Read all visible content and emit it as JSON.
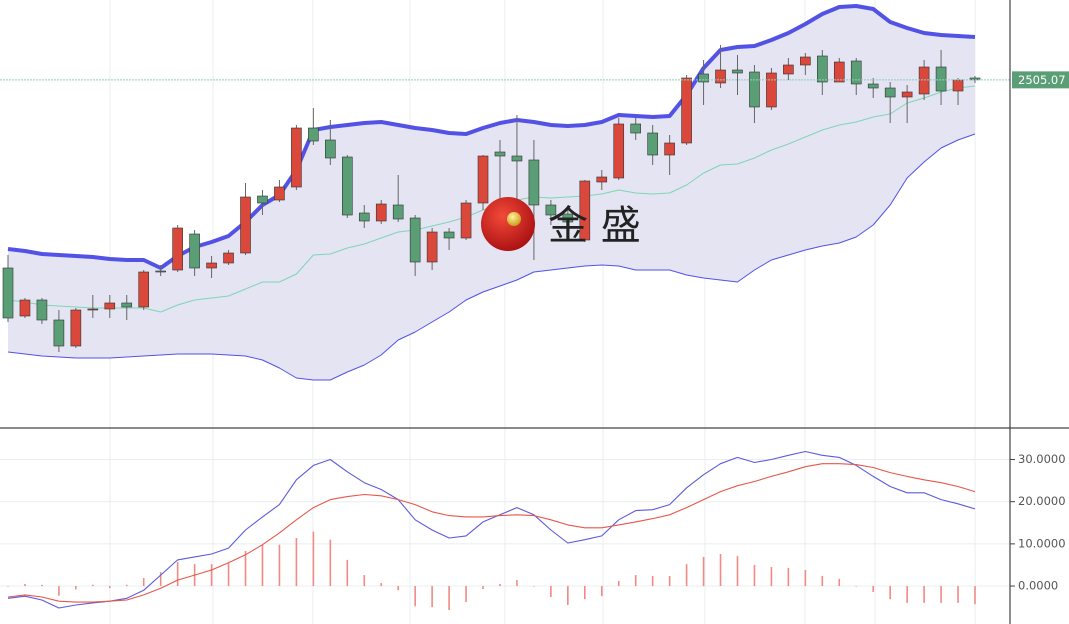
{
  "chart_data": [
    {
      "type": "candlestick",
      "ylim": [
        2331,
        2545
      ],
      "up_color": "#d9483b",
      "down_color": "#5a9e76",
      "band_fill": "#e4e4f2",
      "watermark": "金 盛",
      "open": [
        2411,
        2387,
        2395,
        2385,
        2372,
        2390,
        2390.5,
        2393.5,
        2391.5,
        2409.5,
        2410,
        2428,
        2411,
        2413.5,
        2418.5,
        2447,
        2445,
        2451.5,
        2481,
        2475,
        2466.5,
        2438.5,
        2434.5,
        2442.5,
        2436,
        2414,
        2429,
        2426,
        2443.5,
        2469,
        2467,
        2465,
        2442.5,
        2438,
        2425,
        2454,
        2456,
        2483,
        2478.5,
        2467.5,
        2473.5,
        2508,
        2503.5,
        2510,
        2509,
        2491.5,
        2508,
        2512.5,
        2517,
        2504,
        2514.5,
        2503,
        2501,
        2496.5,
        2498,
        2511.5,
        2499.5,
        2506
      ],
      "high": [
        2417.5,
        2396,
        2396,
        2390,
        2391,
        2397.5,
        2397.5,
        2397.5,
        2410,
        2412.5,
        2432.5,
        2430,
        2417,
        2420,
        2453.5,
        2450,
        2455,
        2482.5,
        2491,
        2485,
        2467.5,
        2442.5,
        2445,
        2457.5,
        2437.5,
        2431,
        2431,
        2445,
        2467.5,
        2475,
        2487.5,
        2475,
        2445,
        2440,
        2455,
        2460,
        2486,
        2486,
        2482.5,
        2477.5,
        2507.5,
        2515,
        2522.5,
        2517.5,
        2512.5,
        2511,
        2516,
        2518.5,
        2520,
        2516,
        2516,
        2506,
        2504,
        2502.5,
        2515,
        2520,
        2506,
        2507
      ],
      "low": [
        2384,
        2386,
        2383,
        2369,
        2371,
        2386,
        2386,
        2385,
        2390,
        2407,
        2409,
        2407,
        2406,
        2412.5,
        2417.5,
        2437.5,
        2444,
        2450,
        2472.5,
        2462.5,
        2436,
        2431,
        2433,
        2434,
        2407,
        2410,
        2420,
        2425,
        2440,
        2440,
        2430,
        2415,
        2432.5,
        2427.5,
        2424,
        2450,
        2455,
        2475,
        2462.5,
        2457.5,
        2472.5,
        2492.5,
        2501,
        2497.5,
        2483.5,
        2490,
        2505,
        2507.5,
        2497.5,
        2504,
        2497.5,
        2496,
        2483.5,
        2483.5,
        2495,
        2492.5,
        2492.5,
        2503.5
      ],
      "close": [
        2386,
        2395,
        2385,
        2372,
        2390,
        2390.5,
        2393.5,
        2391.5,
        2409,
        2409,
        2431,
        2411,
        2413.5,
        2418.5,
        2446.5,
        2443.5,
        2451.5,
        2481,
        2474.5,
        2466,
        2437.5,
        2434.5,
        2443,
        2435.5,
        2414,
        2429,
        2426,
        2443.5,
        2467,
        2467,
        2464.5,
        2442.5,
        2437.5,
        2434,
        2454.5,
        2456.5,
        2483,
        2478.5,
        2467.5,
        2473.5,
        2506,
        2504,
        2510,
        2508.5,
        2491.5,
        2508.5,
        2512.5,
        2516.5,
        2504,
        2514,
        2503,
        2501,
        2496.5,
        2499,
        2511.5,
        2499.5,
        2505,
        2505.07
      ],
      "bands": {
        "upper": {
          "color": "#5252e6",
          "values": [
            2420.5,
            2419.5,
            2418,
            2417.5,
            2417,
            2416.5,
            2415.5,
            2415,
            2415,
            2411,
            2417,
            2421.5,
            2424,
            2427,
            2434,
            2442.5,
            2447.5,
            2460,
            2480,
            2481.5,
            2482.5,
            2483.5,
            2484,
            2482.5,
            2481,
            2480,
            2478.5,
            2478,
            2481,
            2483.5,
            2485,
            2484,
            2482.5,
            2482,
            2482.5,
            2484,
            2487.5,
            2487,
            2486.5,
            2487,
            2497.5,
            2511,
            2520,
            2521.5,
            2522,
            2525,
            2528.5,
            2533,
            2538,
            2541.5,
            2542,
            2540.5,
            2534,
            2531,
            2528.5,
            2527.5,
            2527,
            2526.5
          ]
        },
        "middle": {
          "color": "#7fd6b6",
          "values": [
            2395,
            2394,
            2392.5,
            2392,
            2391.5,
            2391,
            2391,
            2391,
            2391,
            2389,
            2392.5,
            2395,
            2396,
            2397,
            2400.5,
            2404,
            2404,
            2408,
            2417.5,
            2418,
            2421,
            2423,
            2426,
            2429,
            2430,
            2432,
            2434,
            2436.5,
            2440,
            2443,
            2445,
            2446.5,
            2446,
            2446.5,
            2447,
            2448,
            2450,
            2448.5,
            2448,
            2448.5,
            2452.5,
            2458.5,
            2462.5,
            2463,
            2466,
            2470,
            2473,
            2476.5,
            2480,
            2482.5,
            2484,
            2486.5,
            2488,
            2493.5,
            2496,
            2499,
            2501,
            2502
          ]
        },
        "lower": {
          "color": "#5252e6",
          "values": [
            2369,
            2368,
            2367,
            2366.5,
            2366,
            2366,
            2366,
            2366.5,
            2367,
            2367.5,
            2368,
            2368,
            2368,
            2367.5,
            2367,
            2365,
            2361,
            2356,
            2355,
            2355,
            2359,
            2362.5,
            2367.5,
            2375,
            2379,
            2384,
            2389,
            2395,
            2399,
            2402,
            2405,
            2409,
            2410,
            2411,
            2412,
            2412.5,
            2412,
            2410,
            2410,
            2410,
            2407.5,
            2406,
            2405,
            2404,
            2410,
            2415,
            2417.5,
            2420,
            2422,
            2423.5,
            2426.5,
            2432.5,
            2442.5,
            2456,
            2464,
            2471,
            2475,
            2478
          ]
        }
      }
    },
    {
      "type": "macd",
      "ylim": [
        -9,
        37
      ],
      "yticks": [
        {
          "value": 0,
          "label": "0.0000"
        },
        {
          "value": 10,
          "label": "10.0000"
        },
        {
          "value": 20,
          "label": "20.0000"
        },
        {
          "value": 30,
          "label": "30.0000"
        }
      ],
      "grid": true,
      "series": [
        {
          "color": "#5b5bdc",
          "values": [
            -2.9,
            -2.4,
            -3.3,
            -5.2,
            -4.5,
            -4,
            -3.6,
            -2.9,
            -1,
            2.6,
            6.2,
            6.9,
            7.6,
            9,
            13.3,
            16.4,
            19.3,
            25.2,
            28.6,
            30,
            27.1,
            24.5,
            22.9,
            20.5,
            15.7,
            13.3,
            11.4,
            11.9,
            15.2,
            16.9,
            18.6,
            16.9,
            13.3,
            10.2,
            11,
            11.9,
            15.7,
            17.9,
            18.1,
            19.3,
            23.3,
            26.4,
            29,
            30.5,
            29.3,
            30,
            31,
            31.9,
            31,
            30.5,
            28.6,
            26,
            23.6,
            22.1,
            22.1,
            20.5,
            19.5,
            18.3
          ]
        },
        {
          "color": "#e8574a",
          "values": [
            -2.6,
            -2.1,
            -2.6,
            -3.6,
            -3.8,
            -3.8,
            -3.6,
            -3.3,
            -2.1,
            -0.5,
            1.4,
            2.6,
            3.8,
            5.5,
            7.4,
            9.8,
            12.6,
            15.7,
            18.6,
            20.5,
            21.2,
            21.7,
            21.4,
            20.5,
            19.3,
            17.6,
            16.7,
            16.4,
            16.4,
            16.7,
            16.9,
            16.7,
            15.7,
            14.5,
            13.8,
            13.8,
            14.5,
            15.2,
            16,
            16.9,
            18.6,
            20.5,
            22.4,
            23.8,
            24.8,
            26,
            27.1,
            28.3,
            29,
            29,
            28.8,
            28.1,
            26.9,
            26,
            25.2,
            24.5,
            23.6,
            22.4
          ]
        }
      ],
      "histogram": {
        "color": "#f08a84",
        "values": [
          0,
          0.5,
          0.3,
          -2.3,
          -0.8,
          0.3,
          -0.5,
          0.3,
          1.9,
          3.3,
          5.7,
          5.2,
          5.2,
          5.5,
          8.3,
          9.8,
          9.8,
          11.4,
          12.9,
          11,
          6.2,
          2.6,
          0.7,
          -1,
          -4.8,
          -5,
          -5.7,
          -3.8,
          -0.7,
          0.5,
          1.4,
          0,
          -2.6,
          -4.5,
          -3.1,
          -2.4,
          1.2,
          2.6,
          2.4,
          2.4,
          5.2,
          6.9,
          7.6,
          7.1,
          5,
          4.5,
          4.3,
          3.8,
          2.4,
          1.7,
          0,
          -1.4,
          -3.1,
          -4,
          -4,
          -4,
          -4,
          -4.3
        ]
      }
    }
  ]
}
